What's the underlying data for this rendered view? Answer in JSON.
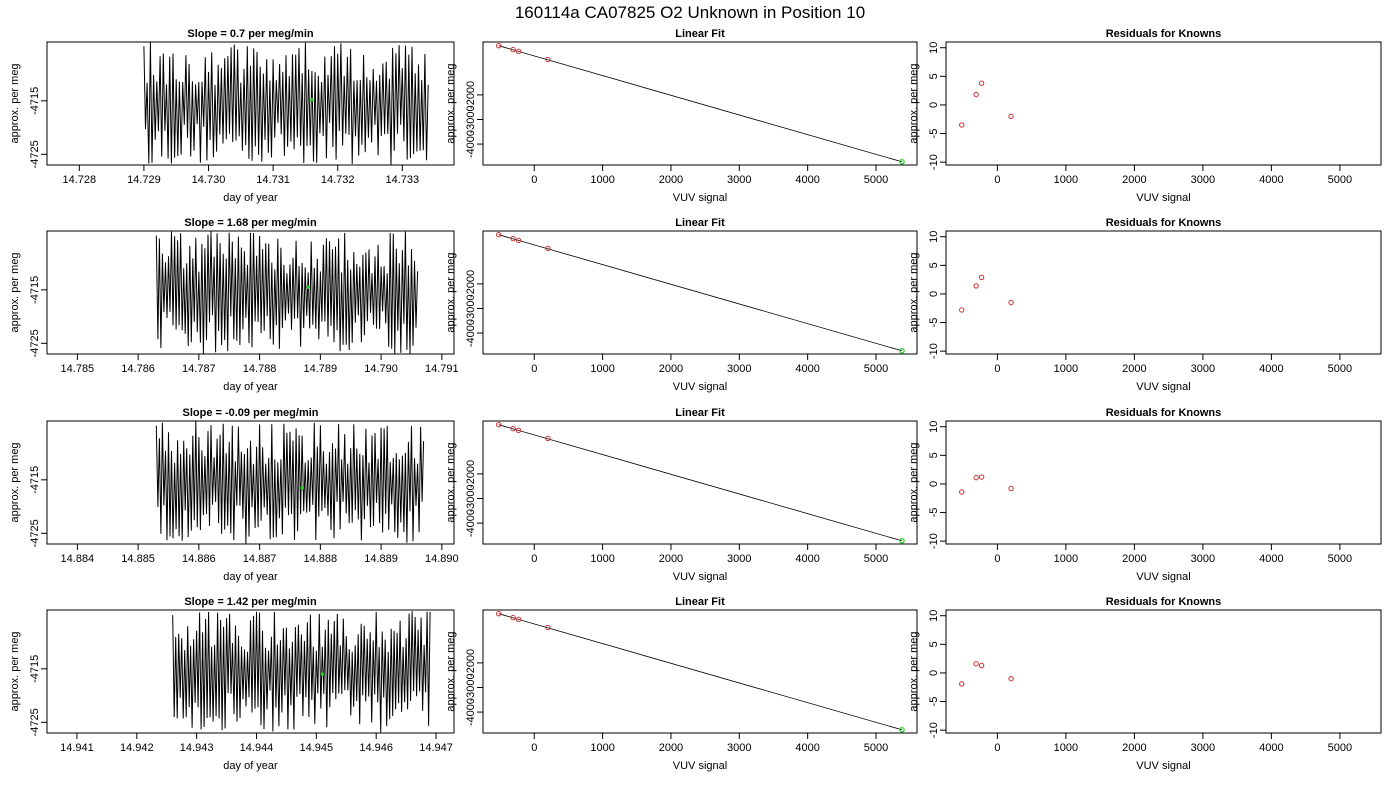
{
  "figure": {
    "title": "160114a      CA07825    O2 Unknown in Position  10"
  },
  "colors": {
    "trace": "#000000",
    "known_point": "#cc3333",
    "unknown_point": "#22cc22",
    "axis": "#000000",
    "background": "#ffffff"
  },
  "chart_data": [
    {
      "type": "line",
      "panel": "time-series",
      "row": 1,
      "title": "Slope =  0.7  per meg/min",
      "xlabel": "day of year",
      "ylabel": "approx. per meg",
      "xlim": [
        14.7275,
        14.7338
      ],
      "ylim": [
        -4727,
        -4704
      ],
      "xticks": [
        14.728,
        14.729,
        14.73,
        14.731,
        14.732,
        14.733
      ],
      "xtick_labels": [
        "14.728",
        "14.729",
        "14.730",
        "14.731",
        "14.732",
        "14.733"
      ],
      "yticks": [
        -4725,
        -4715
      ],
      "ytick_labels": [
        "-4725",
        "-4715"
      ],
      "trace_x_range": [
        14.729,
        14.7334
      ],
      "trace_y_range": [
        -4727,
        -4704
      ],
      "trace_cycles": 88,
      "unknown_point": {
        "x": 14.7316,
        "y": -4714.8
      }
    },
    {
      "type": "line",
      "panel": "time-series",
      "row": 2,
      "title": "Slope =  1.68  per meg/min",
      "xlabel": "day of year",
      "ylabel": "approx. per meg",
      "xlim": [
        14.7845,
        14.7912
      ],
      "ylim": [
        -4727,
        -4704
      ],
      "xticks": [
        14.785,
        14.786,
        14.787,
        14.788,
        14.789,
        14.79,
        14.791
      ],
      "xtick_labels": [
        "14.785",
        "14.786",
        "14.787",
        "14.788",
        "14.789",
        "14.790",
        "14.791"
      ],
      "yticks": [
        -4725,
        -4715
      ],
      "ytick_labels": [
        "-4725",
        "-4715"
      ],
      "trace_x_range": [
        14.7863,
        14.7906
      ],
      "trace_y_range": [
        -4727,
        -4704
      ],
      "trace_cycles": 86,
      "unknown_point": {
        "x": 14.7888,
        "y": -4714.5
      }
    },
    {
      "type": "line",
      "panel": "time-series",
      "row": 3,
      "title": "Slope =  -0.09  per meg/min",
      "xlabel": "day of year",
      "ylabel": "approx. per meg",
      "xlim": [
        14.8835,
        14.8902
      ],
      "ylim": [
        -4727,
        -4704
      ],
      "xticks": [
        14.884,
        14.885,
        14.886,
        14.887,
        14.888,
        14.889,
        14.89
      ],
      "xtick_labels": [
        "14.884",
        "14.885",
        "14.886",
        "14.887",
        "14.888",
        "14.889",
        "14.890"
      ],
      "yticks": [
        -4725,
        -4715
      ],
      "ytick_labels": [
        "-4725",
        "-4715"
      ],
      "trace_x_range": [
        14.8853,
        14.8897
      ],
      "trace_y_range": [
        -4727,
        -4704
      ],
      "trace_cycles": 88,
      "unknown_point": {
        "x": 14.8877,
        "y": -4716.5
      }
    },
    {
      "type": "line",
      "panel": "time-series",
      "row": 4,
      "title": "Slope =  1.42  per meg/min",
      "xlabel": "day of year",
      "ylabel": "approx. per meg",
      "xlim": [
        14.9405,
        14.9473
      ],
      "ylim": [
        -4727,
        -4704
      ],
      "xticks": [
        14.941,
        14.942,
        14.943,
        14.944,
        14.945,
        14.946,
        14.947
      ],
      "xtick_labels": [
        "14.941",
        "14.942",
        "14.943",
        "14.944",
        "14.945",
        "14.946",
        "14.947"
      ],
      "yticks": [
        -4725,
        -4715
      ],
      "ytick_labels": [
        "-4725",
        "-4715"
      ],
      "trace_x_range": [
        14.9426,
        14.9469
      ],
      "trace_y_range": [
        -4727,
        -4704
      ],
      "trace_cycles": 86,
      "unknown_point": {
        "x": 14.9451,
        "y": -4716.0
      }
    },
    {
      "type": "scatter",
      "panel": "linear-fit",
      "row": 1,
      "title": "Linear Fit",
      "xlabel": "VUV signal",
      "ylabel": "approx. per meg",
      "xlim": [
        -750,
        5600
      ],
      "ylim": [
        -4850,
        150
      ],
      "xticks": [
        0,
        1000,
        2000,
        3000,
        4000,
        5000
      ],
      "xtick_labels": [
        "0",
        "1000",
        "2000",
        "3000",
        "4000",
        "5000"
      ],
      "yticks": [
        -4000,
        -3000,
        -2000
      ],
      "ytick_labels": [
        "-4000",
        "-3000",
        "-2000"
      ],
      "known_points": [
        {
          "x": -520,
          "y": 0
        },
        {
          "x": -310,
          "y": -160
        },
        {
          "x": -230,
          "y": -230
        },
        {
          "x": 200,
          "y": -560
        }
      ],
      "unknown_point": {
        "x": 5380,
        "y": -4720
      },
      "fit_line": [
        {
          "x": -520,
          "y": 0
        },
        {
          "x": 5380,
          "y": -4720
        }
      ]
    },
    {
      "type": "scatter",
      "panel": "linear-fit",
      "row": 2,
      "title": "Linear Fit",
      "xlabel": "VUV signal",
      "ylabel": "approx. per meg",
      "xlim": [
        -750,
        5600
      ],
      "ylim": [
        -4850,
        150
      ],
      "xticks": [
        0,
        1000,
        2000,
        3000,
        4000,
        5000
      ],
      "xtick_labels": [
        "0",
        "1000",
        "2000",
        "3000",
        "4000",
        "5000"
      ],
      "yticks": [
        -4000,
        -3000,
        -2000
      ],
      "ytick_labels": [
        "-4000",
        "-3000",
        "-2000"
      ],
      "known_points": [
        {
          "x": -520,
          "y": 0
        },
        {
          "x": -310,
          "y": -160
        },
        {
          "x": -230,
          "y": -230
        },
        {
          "x": 200,
          "y": -560
        }
      ],
      "unknown_point": {
        "x": 5380,
        "y": -4720
      },
      "fit_line": [
        {
          "x": -520,
          "y": 0
        },
        {
          "x": 5380,
          "y": -4720
        }
      ]
    },
    {
      "type": "scatter",
      "panel": "linear-fit",
      "row": 3,
      "title": "Linear Fit",
      "xlabel": "VUV signal",
      "ylabel": "approx. per meg",
      "xlim": [
        -750,
        5600
      ],
      "ylim": [
        -4850,
        150
      ],
      "xticks": [
        0,
        1000,
        2000,
        3000,
        4000,
        5000
      ],
      "xtick_labels": [
        "0",
        "1000",
        "2000",
        "3000",
        "4000",
        "5000"
      ],
      "yticks": [
        -4000,
        -3000,
        -2000
      ],
      "ytick_labels": [
        "-4000",
        "-3000",
        "-2000"
      ],
      "known_points": [
        {
          "x": -520,
          "y": 0
        },
        {
          "x": -310,
          "y": -160
        },
        {
          "x": -230,
          "y": -230
        },
        {
          "x": 200,
          "y": -560
        }
      ],
      "unknown_point": {
        "x": 5380,
        "y": -4720
      },
      "fit_line": [
        {
          "x": -520,
          "y": 0
        },
        {
          "x": 5380,
          "y": -4720
        }
      ]
    },
    {
      "type": "scatter",
      "panel": "linear-fit",
      "row": 4,
      "title": "Linear Fit",
      "xlabel": "VUV signal",
      "ylabel": "approx. per meg",
      "xlim": [
        -750,
        5600
      ],
      "ylim": [
        -4850,
        150
      ],
      "xticks": [
        0,
        1000,
        2000,
        3000,
        4000,
        5000
      ],
      "xtick_labels": [
        "0",
        "1000",
        "2000",
        "3000",
        "4000",
        "5000"
      ],
      "yticks": [
        -4000,
        -3000,
        -2000
      ],
      "ytick_labels": [
        "-4000",
        "-3000",
        "-2000"
      ],
      "known_points": [
        {
          "x": -520,
          "y": 0
        },
        {
          "x": -310,
          "y": -160
        },
        {
          "x": -230,
          "y": -230
        },
        {
          "x": 200,
          "y": -560
        }
      ],
      "unknown_point": {
        "x": 5380,
        "y": -4720
      },
      "fit_line": [
        {
          "x": -520,
          "y": 0
        },
        {
          "x": 5380,
          "y": -4720
        }
      ]
    },
    {
      "type": "scatter",
      "panel": "residuals",
      "row": 1,
      "title": "Residuals for Knowns",
      "xlabel": "VUV signal",
      "ylabel": "approx. per meg",
      "xlim": [
        -750,
        5600
      ],
      "ylim": [
        -10.5,
        11
      ],
      "xticks": [
        0,
        1000,
        2000,
        3000,
        4000,
        5000
      ],
      "xtick_labels": [
        "0",
        "1000",
        "2000",
        "3000",
        "4000",
        "5000"
      ],
      "yticks": [
        -10,
        -5,
        0,
        5,
        10
      ],
      "ytick_labels": [
        "-10",
        "-5",
        "0",
        "5",
        "10"
      ],
      "points": [
        {
          "x": -520,
          "y": -3.5
        },
        {
          "x": -310,
          "y": 1.8
        },
        {
          "x": -230,
          "y": 3.8
        },
        {
          "x": 200,
          "y": -2.0
        }
      ]
    },
    {
      "type": "scatter",
      "panel": "residuals",
      "row": 2,
      "title": "Residuals for Knowns",
      "xlabel": "VUV signal",
      "ylabel": "approx. per meg",
      "xlim": [
        -750,
        5600
      ],
      "ylim": [
        -10.5,
        11
      ],
      "xticks": [
        0,
        1000,
        2000,
        3000,
        4000,
        5000
      ],
      "xtick_labels": [
        "0",
        "1000",
        "2000",
        "3000",
        "4000",
        "5000"
      ],
      "yticks": [
        -10,
        -5,
        0,
        5,
        10
      ],
      "ytick_labels": [
        "-10",
        "-5",
        "0",
        "5",
        "10"
      ],
      "points": [
        {
          "x": -520,
          "y": -2.8
        },
        {
          "x": -310,
          "y": 1.4
        },
        {
          "x": -230,
          "y": 2.9
        },
        {
          "x": 200,
          "y": -1.5
        }
      ]
    },
    {
      "type": "scatter",
      "panel": "residuals",
      "row": 3,
      "title": "Residuals for Knowns",
      "xlabel": "VUV signal",
      "ylabel": "approx. per meg",
      "xlim": [
        -750,
        5600
      ],
      "ylim": [
        -10.5,
        11
      ],
      "xticks": [
        0,
        1000,
        2000,
        3000,
        4000,
        5000
      ],
      "xtick_labels": [
        "0",
        "1000",
        "2000",
        "3000",
        "4000",
        "5000"
      ],
      "yticks": [
        -10,
        -5,
        0,
        5,
        10
      ],
      "ytick_labels": [
        "-10",
        "-5",
        "0",
        "5",
        "10"
      ],
      "points": [
        {
          "x": -520,
          "y": -1.4
        },
        {
          "x": -310,
          "y": 1.1
        },
        {
          "x": -230,
          "y": 1.2
        },
        {
          "x": 200,
          "y": -0.8
        }
      ]
    },
    {
      "type": "scatter",
      "panel": "residuals",
      "row": 4,
      "title": "Residuals for Knowns",
      "xlabel": "VUV signal",
      "ylabel": "approx. per meg",
      "xlim": [
        -750,
        5600
      ],
      "ylim": [
        -10.5,
        11
      ],
      "xticks": [
        0,
        1000,
        2000,
        3000,
        4000,
        5000
      ],
      "xtick_labels": [
        "0",
        "1000",
        "2000",
        "3000",
        "4000",
        "5000"
      ],
      "yticks": [
        -10,
        -5,
        0,
        5,
        10
      ],
      "ytick_labels": [
        "-10",
        "-5",
        "0",
        "5",
        "10"
      ],
      "points": [
        {
          "x": -520,
          "y": -1.9
        },
        {
          "x": -310,
          "y": 1.6
        },
        {
          "x": -230,
          "y": 1.3
        },
        {
          "x": 200,
          "y": -1.0
        }
      ]
    }
  ]
}
